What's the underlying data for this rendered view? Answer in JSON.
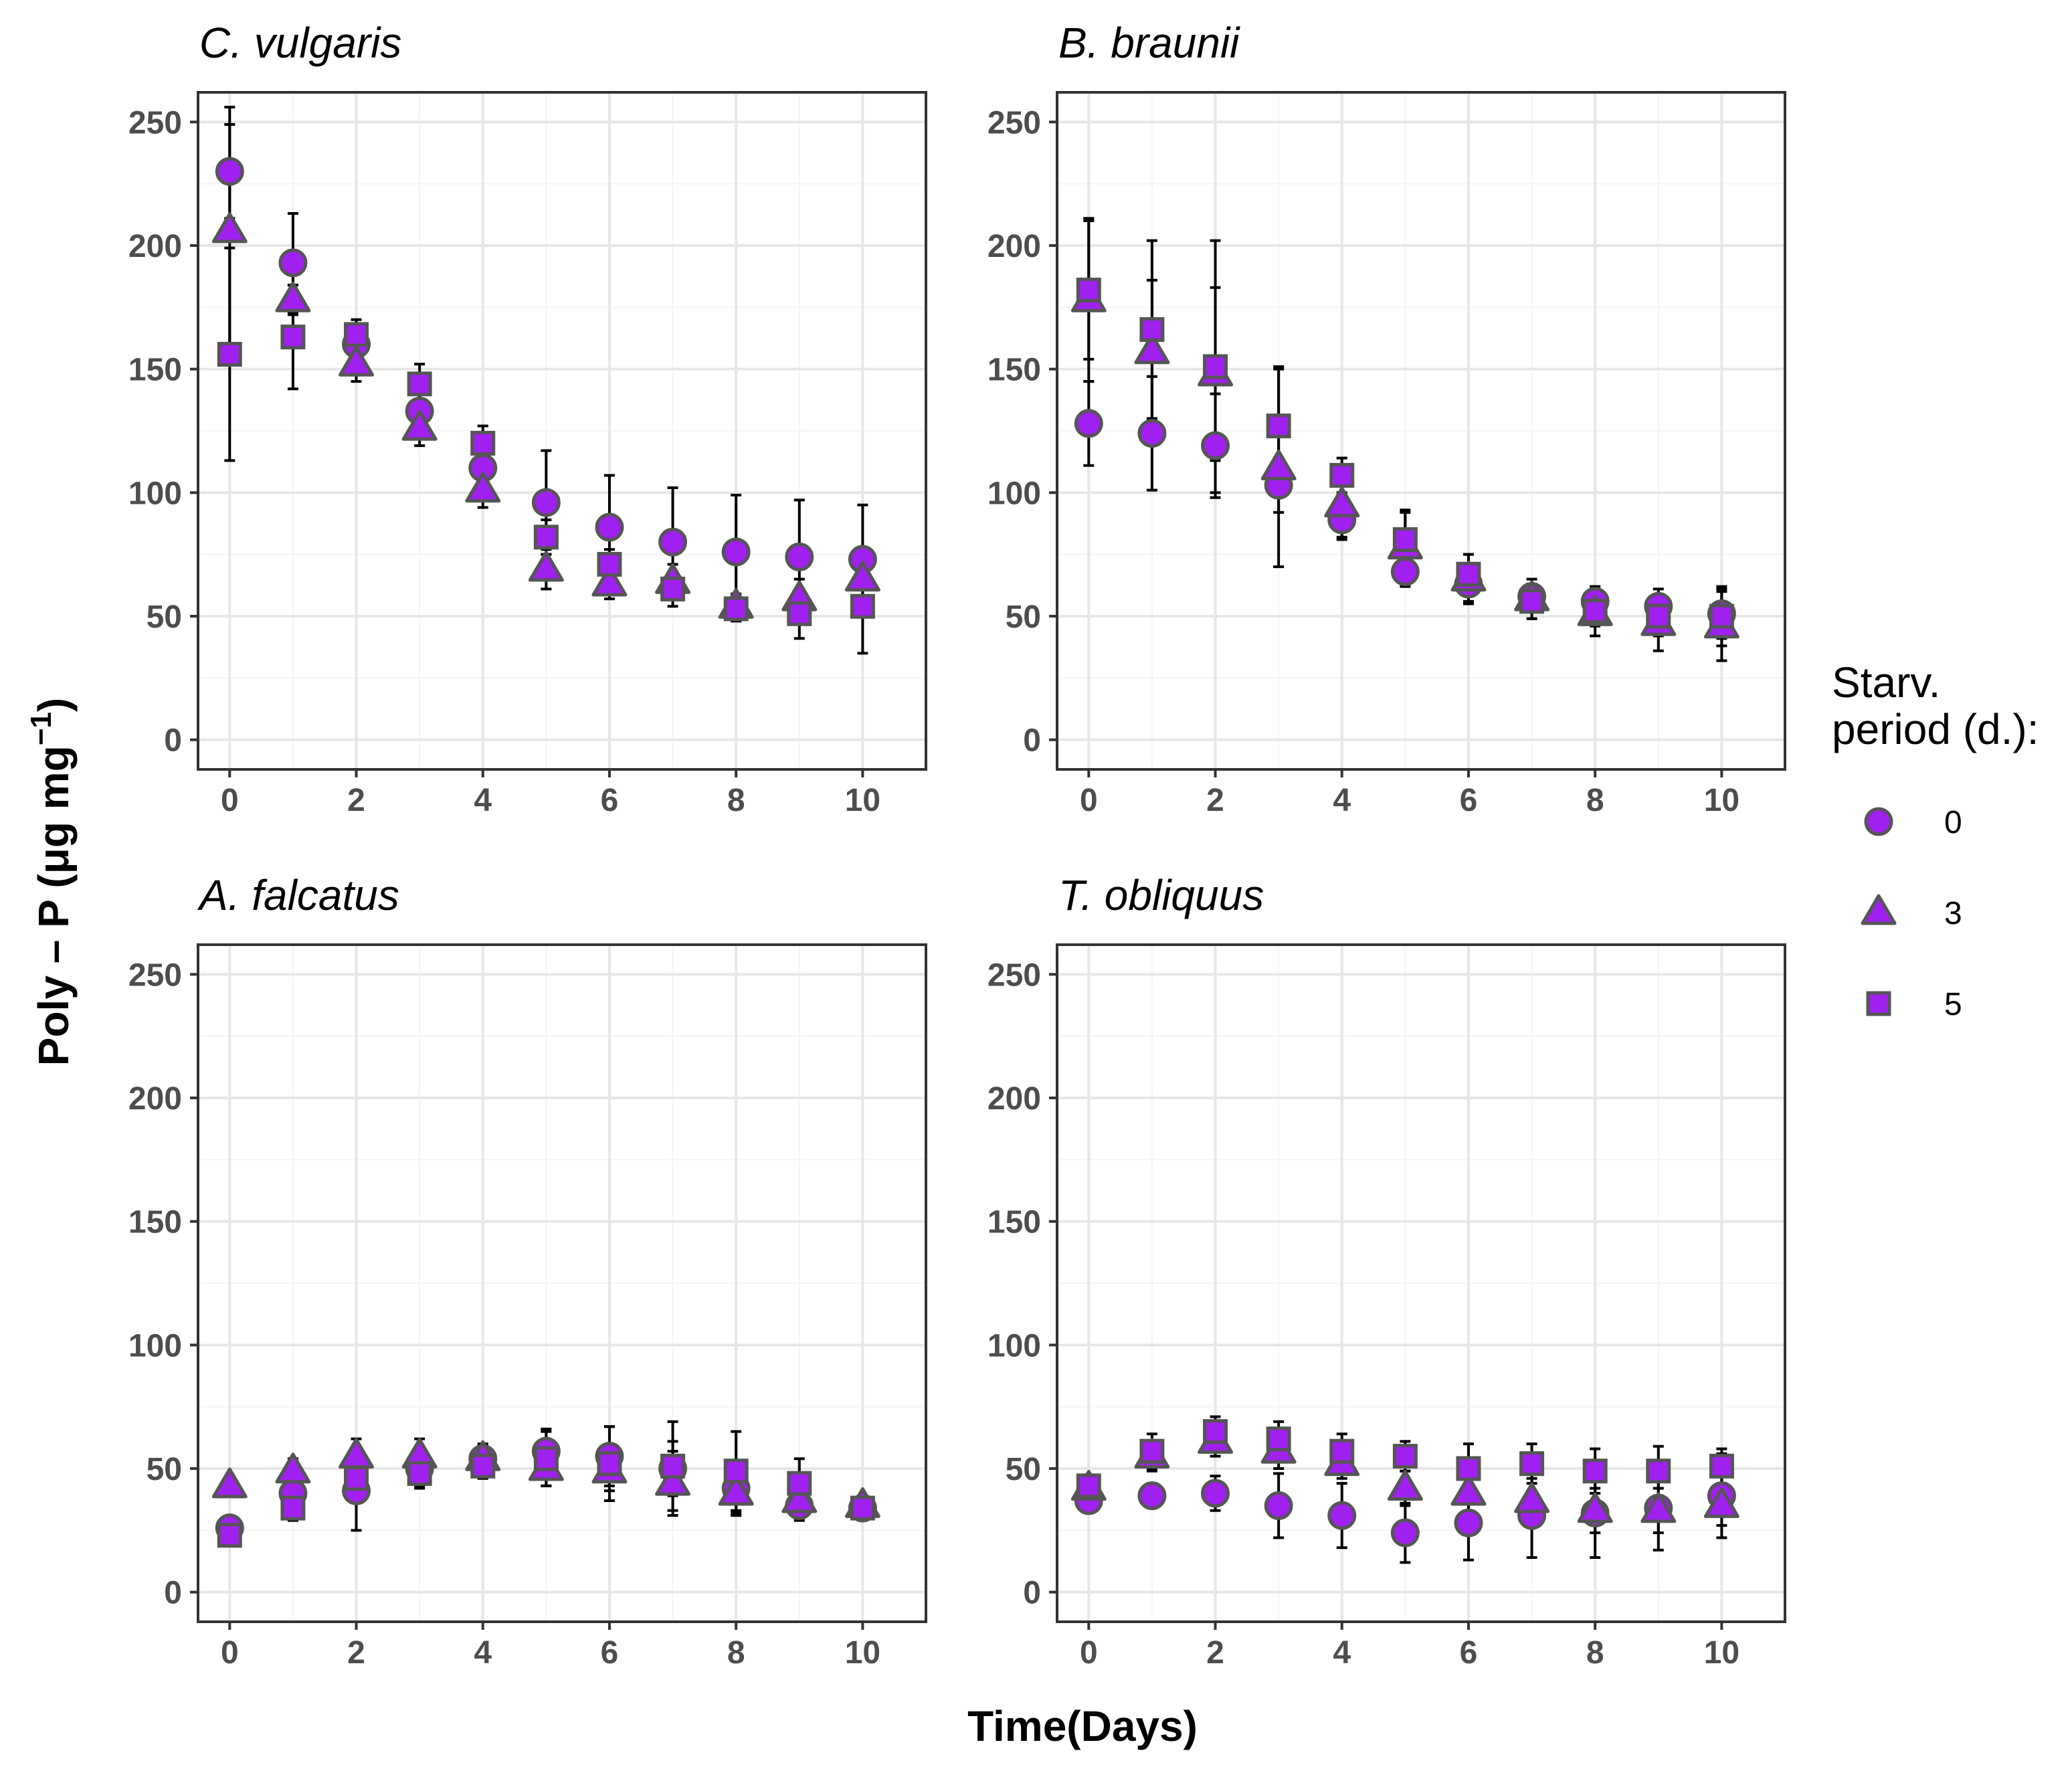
{
  "chart_data": {
    "type": "scatter",
    "layout": "2x2 facets with shared axes",
    "xlabel": "Time(Days)",
    "ylabel_parts": {
      "main": "Poly – P (μg mg",
      "sup": "−1",
      "close": ")"
    },
    "xlim": [
      -0.5,
      11
    ],
    "ylim": [
      -12,
      262
    ],
    "x_ticks": [
      0,
      2,
      4,
      6,
      8,
      10
    ],
    "x_tick_labels": [
      "0",
      "2",
      "4",
      "6",
      "8",
      "10"
    ],
    "y_ticks": [
      0,
      50,
      100,
      150,
      200,
      250
    ],
    "y_tick_labels": [
      "0",
      "50",
      "100",
      "150",
      "200",
      "250"
    ],
    "grid": true,
    "marker_fill": "#a020f0",
    "marker_edge": "#555555",
    "legend": {
      "title_lines": [
        "Starv.",
        "period (d.):"
      ],
      "position": "right",
      "entries": [
        {
          "label": "0",
          "shape": "circle"
        },
        {
          "label": "3",
          "shape": "triangle"
        },
        {
          "label": "5",
          "shape": "square"
        }
      ]
    },
    "panels": [
      {
        "title": "C. vulgaris",
        "series": [
          {
            "name": "0",
            "shape": "circle",
            "x": [
              0,
              1,
              2,
              3,
              4,
              5,
              6,
              7,
              8,
              9,
              10
            ],
            "y": [
              230,
              193,
              160,
              133,
              110,
              96,
              86,
              80,
              76,
              74,
              73
            ],
            "err": [
              19,
              20,
              8,
              7,
              8,
              21,
              21,
              22,
              23,
              23,
              22
            ]
          },
          {
            "name": "3",
            "shape": "triangle",
            "x": [
              0,
              1,
              2,
              3,
              4,
              5,
              6,
              7,
              8,
              9,
              10
            ],
            "y": [
              206,
              178,
              152,
              126,
              101,
              69,
              63,
              64,
              54,
              57,
              65
            ],
            "err": [
              50,
              6,
              7,
              7,
              7,
              8,
              6,
              7,
              5,
              8,
              10
            ]
          },
          {
            "name": "5",
            "shape": "square",
            "x": [
              0,
              1,
              2,
              3,
              4,
              5,
              6,
              7,
              8,
              9,
              10
            ],
            "y": [
              156,
              163,
              164,
              144,
              120,
              82,
              71,
              61,
              53,
              51,
              54
            ],
            "err": [
              43,
              21,
              6,
              8,
              7,
              7,
              6,
              7,
              5,
              10,
              19
            ]
          }
        ]
      },
      {
        "title": "B. braunii",
        "series": [
          {
            "name": "0",
            "shape": "circle",
            "x": [
              0,
              1,
              2,
              3,
              4,
              5,
              6,
              7,
              8,
              9,
              10
            ],
            "y": [
              128,
              124,
              119,
              103,
              89,
              68,
              63,
              58,
              56,
              54,
              51
            ],
            "err": [
              17,
              23,
              21,
              11,
              8,
              6,
              7,
              5,
              6,
              7,
              10
            ]
          },
          {
            "name": "3",
            "shape": "triangle",
            "x": [
              0,
              1,
              2,
              3,
              4,
              5,
              6,
              7,
              8,
              9,
              10
            ],
            "y": [
              178,
              157,
              148,
              110,
              95,
              78,
              65,
              57,
              51,
              47,
              46
            ],
            "err": [
              33,
              29,
              35,
              40,
              13,
              14,
              10,
              8,
              9,
              11,
              14
            ]
          },
          {
            "name": "5",
            "shape": "square",
            "x": [
              0,
              1,
              2,
              3,
              4,
              5,
              6,
              7,
              8,
              9,
              10
            ],
            "y": [
              182,
              166,
              151,
              127,
              107,
              81,
              67,
              56,
              52,
              50,
              50
            ],
            "err": [
              28,
              36,
              51,
              24,
              7,
              12,
              8,
              7,
              6,
              8,
              12
            ]
          }
        ]
      },
      {
        "title": "A. falcatus",
        "series": [
          {
            "name": "0",
            "shape": "circle",
            "x": [
              0,
              1,
              2,
              3,
              4,
              5,
              6,
              7,
              8,
              9,
              10
            ],
            "y": [
              26,
              40,
              41,
              50,
              54,
              57,
              55,
              50,
              42,
              35,
              34
            ],
            "err": [
              4,
              10,
              16,
              7,
              6,
              9,
              12,
              11,
              10,
              4,
              3
            ]
          },
          {
            "name": "3",
            "shape": "triangle",
            "x": [
              0,
              1,
              2,
              3,
              4,
              5,
              6,
              7,
              8,
              9,
              10
            ],
            "y": [
              43,
              49,
              55,
              55,
              54,
              50,
              49,
              44,
              40,
              37,
              35
            ],
            "err": [
              3,
              5,
              7,
              7,
              5,
              7,
              8,
              13,
              9,
              8,
              3
            ]
          },
          {
            "name": "5",
            "shape": "square",
            "x": [
              0,
              1,
              2,
              3,
              4,
              5,
              6,
              7,
              8,
              9,
              10
            ],
            "y": [
              23,
              34,
              46,
              48,
              51,
              54,
              52,
              51,
              49,
              44,
              34
            ],
            "err": [
              3,
              5,
              7,
              6,
              5,
              11,
              15,
              18,
              16,
              10,
              3
            ]
          }
        ]
      },
      {
        "title": "T. obliquus",
        "series": [
          {
            "name": "0",
            "shape": "circle",
            "x": [
              0,
              1,
              2,
              3,
              4,
              5,
              6,
              7,
              8,
              9,
              10
            ],
            "y": [
              37,
              39,
              40,
              35,
              31,
              24,
              28,
              31,
              32,
              34,
              39
            ],
            "err": [
              4,
              5,
              7,
              13,
              13,
              12,
              15,
              17,
              18,
              17,
              17
            ]
          },
          {
            "name": "3",
            "shape": "triangle",
            "x": [
              0,
              1,
              2,
              3,
              4,
              5,
              6,
              7,
              8,
              9,
              10
            ],
            "y": [
              42,
              55,
              61,
              57,
              52,
              42,
              40,
              37,
              33,
              33,
              35
            ],
            "err": [
              5,
              6,
              6,
              7,
              6,
              7,
              8,
              9,
              9,
              9,
              8
            ]
          },
          {
            "name": "5",
            "shape": "square",
            "x": [
              0,
              1,
              2,
              3,
              4,
              5,
              6,
              7,
              8,
              9,
              10
            ],
            "y": [
              43,
              57,
              65,
              62,
              57,
              55,
              50,
              52,
              49,
              49,
              51
            ],
            "err": [
              4,
              7,
              6,
              7,
              7,
              6,
              10,
              8,
              9,
              10,
              7
            ]
          }
        ]
      }
    ]
  }
}
